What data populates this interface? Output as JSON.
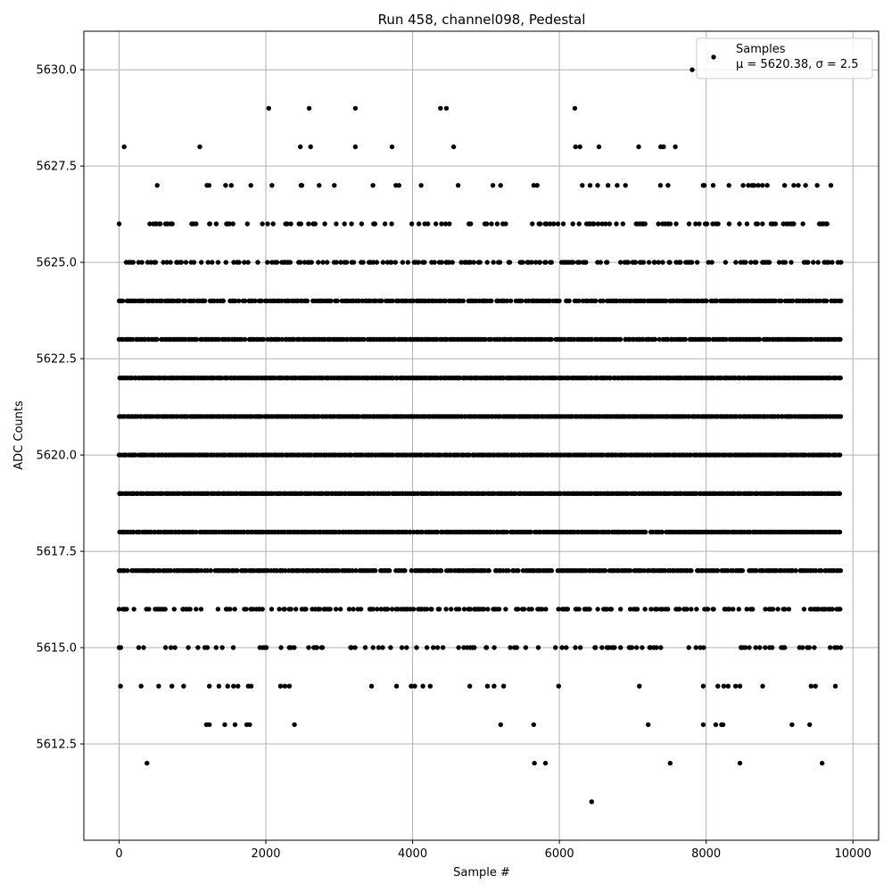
{
  "chart_data": {
    "type": "scatter",
    "title": "Run 458, channel098, Pedestal",
    "xlabel": "Sample #",
    "ylabel": "ADC Counts",
    "xlim": [
      -480,
      10350
    ],
    "ylim": [
      5610.0,
      5631.0
    ],
    "xticks": [
      0,
      2000,
      4000,
      6000,
      8000,
      10000
    ],
    "xtick_labels": [
      "0",
      "2000",
      "4000",
      "6000",
      "8000",
      "10000"
    ],
    "yticks": [
      5612.5,
      5615.0,
      5617.5,
      5620.0,
      5622.5,
      5625.0,
      5627.5,
      5630.0
    ],
    "ytick_labels": [
      "5612.5",
      "5615.0",
      "5617.5",
      "5620.0",
      "5622.5",
      "5625.0",
      "5627.5",
      "5630.0"
    ],
    "grid": true,
    "legend": {
      "placement": "top-right",
      "series_name": "Samples",
      "stats_text": "μ = 5620.38, σ = 2.5"
    },
    "marker_color": "#000000",
    "x_range": [
      0,
      9840
    ],
    "sample_count": 9840,
    "mean": 5620.38,
    "sigma": 2.5,
    "points": [
      [
        70,
        5628
      ],
      [
        1100,
        5628
      ],
      [
        2470,
        5628
      ],
      [
        2610,
        5628
      ],
      [
        3220,
        5628
      ],
      [
        3720,
        5628
      ],
      [
        4560,
        5628
      ],
      [
        6220,
        5628
      ],
      [
        6280,
        5628
      ],
      [
        6540,
        5628
      ],
      [
        7080,
        5628
      ],
      [
        7380,
        5628
      ],
      [
        7420,
        5628
      ],
      [
        7580,
        5628
      ],
      [
        2040,
        5629
      ],
      [
        2590,
        5629
      ],
      [
        3220,
        5629
      ],
      [
        4380,
        5629
      ],
      [
        4460,
        5629
      ],
      [
        6210,
        5629
      ],
      [
        7810,
        5630
      ],
      [
        380,
        5612
      ],
      [
        5660,
        5612
      ],
      [
        5810,
        5612
      ],
      [
        7510,
        5612
      ],
      [
        8460,
        5612
      ],
      [
        9580,
        5612
      ],
      [
        6440,
        5611
      ],
      [
        1190,
        5613
      ],
      [
        1230,
        5613
      ],
      [
        1440,
        5613
      ],
      [
        1580,
        5613
      ],
      [
        1740,
        5613
      ],
      [
        1780,
        5613
      ],
      [
        2390,
        5613
      ],
      [
        5200,
        5613
      ],
      [
        5650,
        5613
      ],
      [
        7210,
        5613
      ],
      [
        7960,
        5613
      ],
      [
        8130,
        5613
      ],
      [
        8210,
        5613
      ],
      [
        8230,
        5613
      ],
      [
        9170,
        5613
      ],
      [
        9410,
        5613
      ],
      [
        20,
        5614
      ],
      [
        300,
        5614
      ],
      [
        540,
        5614
      ],
      [
        720,
        5614
      ],
      [
        880,
        5614
      ],
      [
        1230,
        5614
      ],
      [
        1360,
        5614
      ],
      [
        1480,
        5614
      ],
      [
        1560,
        5614
      ],
      [
        1620,
        5614
      ],
      [
        1760,
        5614
      ],
      [
        1800,
        5614
      ],
      [
        2200,
        5614
      ],
      [
        2260,
        5614
      ],
      [
        2320,
        5614
      ],
      [
        3440,
        5614
      ],
      [
        3780,
        5614
      ],
      [
        3980,
        5614
      ],
      [
        4030,
        5614
      ],
      [
        4140,
        5614
      ],
      [
        4240,
        5614
      ],
      [
        4780,
        5614
      ],
      [
        5020,
        5614
      ],
      [
        5110,
        5614
      ],
      [
        5240,
        5614
      ],
      [
        5990,
        5614
      ],
      [
        7090,
        5614
      ],
      [
        7960,
        5614
      ],
      [
        8160,
        5614
      ],
      [
        8240,
        5614
      ],
      [
        8300,
        5614
      ],
      [
        8400,
        5614
      ],
      [
        8460,
        5614
      ],
      [
        8770,
        5614
      ],
      [
        9430,
        5614
      ],
      [
        9490,
        5614
      ],
      [
        9760,
        5614
      ]
    ],
    "dense_levels": [
      {
        "y": 5627,
        "coverage": 0.12
      },
      {
        "y": 5626,
        "coverage": 0.3
      },
      {
        "y": 5625,
        "coverage": 0.5
      },
      {
        "y": 5624,
        "coverage": 0.8
      },
      {
        "y": 5623,
        "coverage": 0.95
      },
      {
        "y": 5622,
        "coverage": 1.0
      },
      {
        "y": 5621,
        "coverage": 1.0
      },
      {
        "y": 5620,
        "coverage": 1.0
      },
      {
        "y": 5619,
        "coverage": 1.0
      },
      {
        "y": 5618,
        "coverage": 0.95
      },
      {
        "y": 5617,
        "coverage": 0.85
      },
      {
        "y": 5616,
        "coverage": 0.55
      },
      {
        "y": 5615,
        "coverage": 0.3
      }
    ]
  }
}
